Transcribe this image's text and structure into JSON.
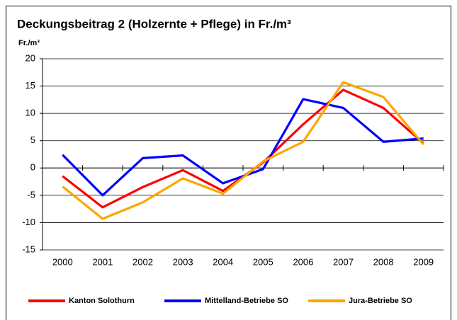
{
  "chart_data": {
    "type": "line",
    "title": "Deckungsbeitrag 2 (Holzernte + Pflege)  in Fr./m³",
    "y_label": "Fr./m³",
    "categories": [
      "2000",
      "2001",
      "2002",
      "2003",
      "2004",
      "2005",
      "2006",
      "2007",
      "2008",
      "2009"
    ],
    "series": [
      {
        "name": "Kanton Solothurn",
        "color": "#ff0000",
        "values": [
          -1.5,
          -7.2,
          -3.5,
          -0.4,
          -4.2,
          1.0,
          8.0,
          14.3,
          11.0,
          4.5
        ]
      },
      {
        "name": "Mittelland-Betriebe SO",
        "color": "#0000ff",
        "values": [
          2.4,
          -5.0,
          1.8,
          2.3,
          -2.8,
          -0.2,
          12.6,
          11.0,
          4.8,
          5.4
        ]
      },
      {
        "name": "Jura-Betriebe SO",
        "color": "#ffa500",
        "values": [
          -3.4,
          -9.3,
          -6.3,
          -1.9,
          -4.7,
          1.2,
          4.8,
          15.7,
          13.0,
          4.3
        ]
      }
    ],
    "ylim": [
      -15,
      20
    ],
    "yticks": [
      -15,
      -10,
      -5,
      0,
      5,
      10,
      15,
      20
    ],
    "grid": true,
    "legend": "bottom"
  }
}
